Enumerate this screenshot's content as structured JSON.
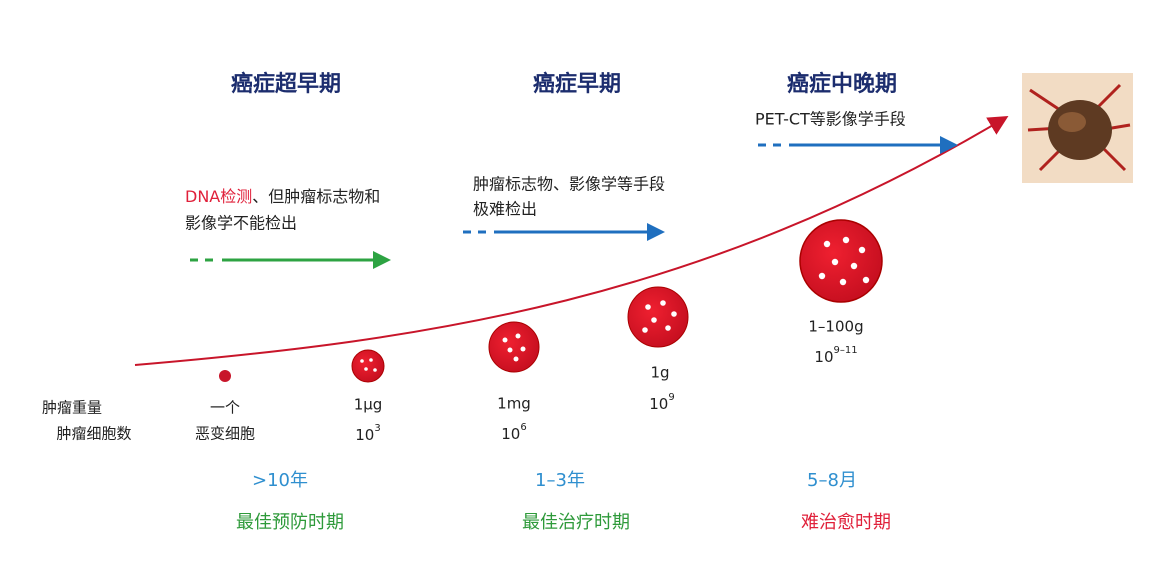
{
  "stages": [
    "癌症超早期",
    "癌症早期",
    "癌症中晚期"
  ],
  "notes": [
    {
      "highlight": "DNA检测",
      "rest": "、但肿瘤标志物和",
      "line2": "影像学不能检出"
    },
    {
      "line1": "肿瘤标志物、影像学等手段",
      "line2": "极难检出"
    },
    {
      "line1": "PET-CT等影像学手段"
    }
  ],
  "row_labels": [
    "肿瘤重量",
    "肿瘤细胞数"
  ],
  "sizes": [
    {
      "line1": "一个",
      "line2": "恶变细胞"
    },
    {
      "weight": "1μg",
      "count": {
        "base": "10",
        "exp": "3"
      }
    },
    {
      "weight": "1mg",
      "count": {
        "base": "10",
        "exp": "6"
      }
    },
    {
      "weight": "1g",
      "count": {
        "base": "10",
        "exp": "9"
      }
    },
    {
      "weight": "1–100g",
      "count": {
        "base": "10",
        "exp": "9–11"
      }
    }
  ],
  "durations": [
    ">10年",
    "1–3年",
    "5–8月"
  ],
  "periods": [
    "最佳预防时期",
    "最佳治疗时期",
    "难治愈时期"
  ]
}
